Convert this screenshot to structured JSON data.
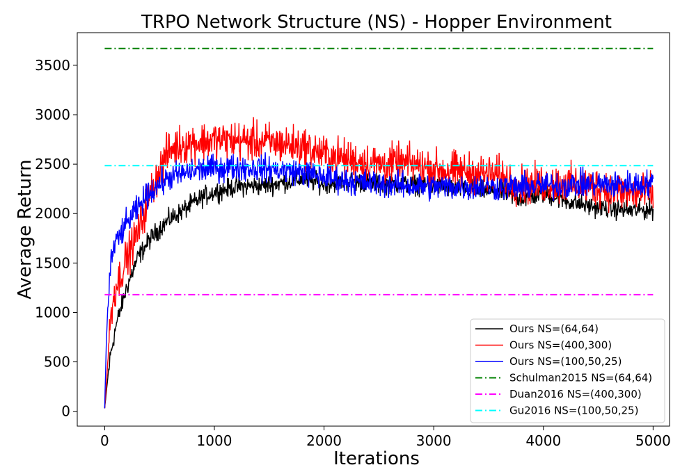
{
  "chart_data": {
    "type": "line",
    "title": "TRPO Network Structure (NS) - Hopper Environment",
    "xlabel": "Iterations",
    "ylabel": "Average Return",
    "xlim": [
      -250,
      5150
    ],
    "ylim": [
      -150,
      3830
    ],
    "xticks": [
      0,
      1000,
      2000,
      3000,
      4000,
      5000
    ],
    "yticks": [
      0,
      500,
      1000,
      1500,
      2000,
      2500,
      3000,
      3500
    ],
    "grid": false,
    "legend_position": "bottom-right",
    "series": [
      {
        "name": "Ours NS=(64,64)",
        "color": "#000000",
        "style": "solid",
        "noise": 110,
        "points": [
          [
            0,
            30
          ],
          [
            20,
            250
          ],
          [
            50,
            550
          ],
          [
            100,
            850
          ],
          [
            150,
            1050
          ],
          [
            200,
            1250
          ],
          [
            250,
            1400
          ],
          [
            300,
            1550
          ],
          [
            400,
            1720
          ],
          [
            500,
            1850
          ],
          [
            600,
            1950
          ],
          [
            700,
            2020
          ],
          [
            800,
            2100
          ],
          [
            900,
            2170
          ],
          [
            1000,
            2220
          ],
          [
            1200,
            2270
          ],
          [
            1500,
            2290
          ],
          [
            1800,
            2350
          ],
          [
            2000,
            2300
          ],
          [
            2200,
            2330
          ],
          [
            2500,
            2300
          ],
          [
            2700,
            2300
          ],
          [
            3000,
            2280
          ],
          [
            3300,
            2250
          ],
          [
            3600,
            2220
          ],
          [
            3800,
            2150
          ],
          [
            4000,
            2200
          ],
          [
            4200,
            2130
          ],
          [
            4400,
            2080
          ],
          [
            4600,
            2050
          ],
          [
            4800,
            2030
          ],
          [
            5000,
            2040
          ]
        ]
      },
      {
        "name": "Ours NS=(400,300)",
        "color": "#ff0000",
        "style": "solid",
        "noise": 220,
        "points": [
          [
            0,
            30
          ],
          [
            20,
            350
          ],
          [
            50,
            900
          ],
          [
            80,
            1150
          ],
          [
            100,
            1250
          ],
          [
            150,
            1400
          ],
          [
            200,
            1550
          ],
          [
            300,
            1800
          ],
          [
            400,
            2150
          ],
          [
            500,
            2450
          ],
          [
            600,
            2650
          ],
          [
            700,
            2700
          ],
          [
            800,
            2720
          ],
          [
            1000,
            2740
          ],
          [
            1200,
            2740
          ],
          [
            1500,
            2720
          ],
          [
            1800,
            2680
          ],
          [
            2000,
            2600
          ],
          [
            2200,
            2550
          ],
          [
            2500,
            2500
          ],
          [
            2800,
            2500
          ],
          [
            3000,
            2450
          ],
          [
            3300,
            2420
          ],
          [
            3600,
            2380
          ],
          [
            3800,
            2280
          ],
          [
            4000,
            2300
          ],
          [
            4200,
            2300
          ],
          [
            4400,
            2280
          ],
          [
            4600,
            2250
          ],
          [
            4800,
            2200
          ],
          [
            5000,
            2200
          ]
        ]
      },
      {
        "name": "Ours NS=(100,50,25)",
        "color": "#0000ff",
        "style": "solid",
        "noise": 150,
        "points": [
          [
            0,
            30
          ],
          [
            15,
            700
          ],
          [
            30,
            1100
          ],
          [
            60,
            1550
          ],
          [
            100,
            1700
          ],
          [
            150,
            1800
          ],
          [
            200,
            1900
          ],
          [
            300,
            2050
          ],
          [
            400,
            2200
          ],
          [
            500,
            2300
          ],
          [
            600,
            2370
          ],
          [
            700,
            2400
          ],
          [
            900,
            2450
          ],
          [
            1200,
            2470
          ],
          [
            1500,
            2450
          ],
          [
            1800,
            2420
          ],
          [
            2000,
            2370
          ],
          [
            2200,
            2330
          ],
          [
            2500,
            2300
          ],
          [
            2800,
            2280
          ],
          [
            3000,
            2270
          ],
          [
            3300,
            2270
          ],
          [
            3600,
            2270
          ],
          [
            3800,
            2270
          ],
          [
            4000,
            2280
          ],
          [
            4200,
            2290
          ],
          [
            4400,
            2300
          ],
          [
            4600,
            2290
          ],
          [
            4800,
            2300
          ],
          [
            5000,
            2300
          ]
        ]
      },
      {
        "name": "Schulman2015 NS=(64,64)",
        "color": "#008000",
        "style": "dashdot",
        "value": 3670
      },
      {
        "name": "Duan2016 NS=(400,300)",
        "color": "#ff00ff",
        "style": "dashdot",
        "value": 1180
      },
      {
        "name": "Gu2016 NS=(100,50,25)",
        "color": "#00ffff",
        "style": "dashdot",
        "value": 2485
      }
    ]
  }
}
